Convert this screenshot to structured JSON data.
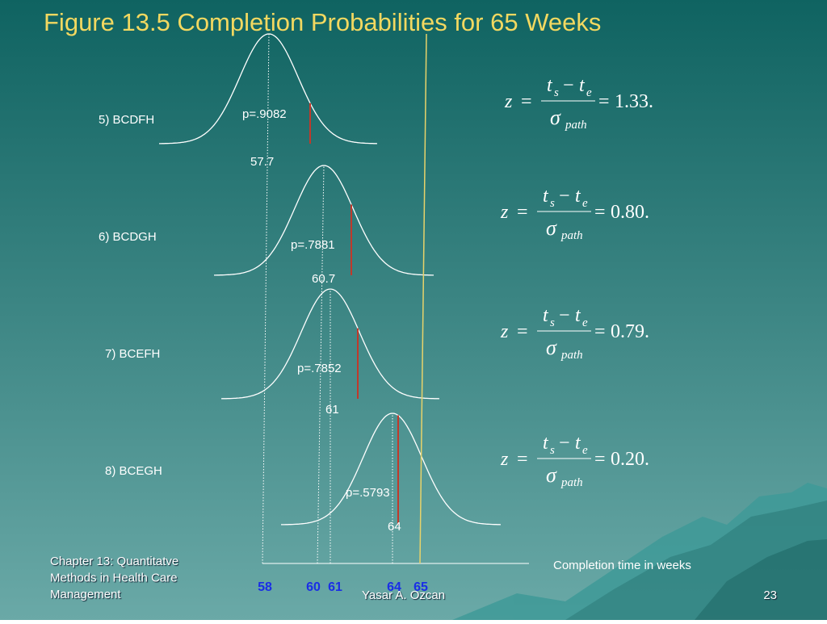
{
  "title": "Figure 13.5 Completion Probabilities for 65 Weeks",
  "formula": {
    "z": "z",
    "equals": "=",
    "t": "t",
    "s": "s",
    "minus": "−",
    "e": "e",
    "sigma": "σ",
    "path": "path"
  },
  "paths": [
    {
      "label": "5) BCDFH",
      "probability": "p=.9082",
      "mean": "57.7",
      "z": "1.33."
    },
    {
      "label": "6) BCDGH",
      "probability": "p=.7881",
      "mean": "60.7",
      "z": "0.80."
    },
    {
      "label": "7) BCEFH",
      "probability": "p=.7852",
      "mean": "61",
      "z": "0.79."
    },
    {
      "label": "8) BCEGH",
      "probability": "p=.5793",
      "mean": "64",
      "z": "0.20."
    }
  ],
  "axis": {
    "ticks": [
      "58",
      "60",
      "61",
      "64",
      "65"
    ],
    "label": "Completion time in weeks"
  },
  "footer": {
    "chapter": [
      "Chapter 13: Quantitatve",
      "Methods in Health Care",
      "Management"
    ],
    "author": "Yasar A. Ozcan",
    "page": "23"
  }
}
